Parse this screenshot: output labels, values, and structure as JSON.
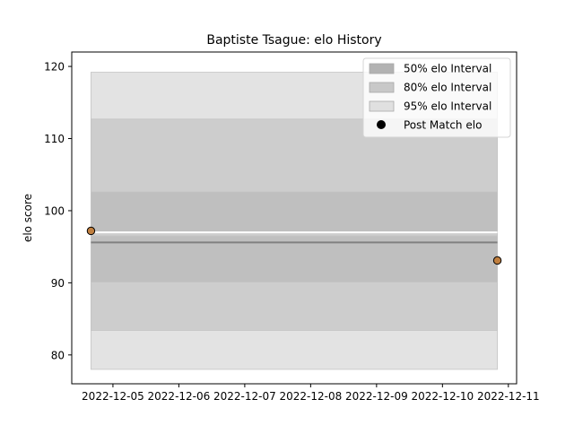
{
  "chart_data": {
    "type": "area",
    "title": "Baptiste Tsague: elo History",
    "xlabel": "",
    "ylabel": "elo score",
    "x_type": "date",
    "xlim": [
      "2022-12-04T09:00",
      "2022-12-11T03:00"
    ],
    "ylim": [
      76,
      122
    ],
    "xticks": [
      "2022-12-05",
      "2022-12-06",
      "2022-12-07",
      "2022-12-08",
      "2022-12-09",
      "2022-12-10",
      "2022-12-11"
    ],
    "yticks": [
      80,
      90,
      100,
      110,
      120
    ],
    "bands": [
      {
        "name": "95% elo Interval",
        "color": "#e3e3e3",
        "segments": [
          {
            "x": [
              "2022-12-04T16:00",
              "2022-12-10T20:00"
            ],
            "lower": 78.0,
            "upper": 119.2
          }
        ]
      },
      {
        "name": "80% elo Interval",
        "color": "#cdcdcd",
        "segments": [
          {
            "x": [
              "2022-12-04T16:00",
              "2022-12-10T20:00"
            ],
            "lower": 83.4,
            "upper": 112.7
          }
        ]
      },
      {
        "name": "50% elo Interval",
        "color": "#bfbfbf",
        "segments": [
          {
            "x": [
              "2022-12-04T16:00",
              "2022-12-10T20:00"
            ],
            "lower": 97.0,
            "upper": 102.6
          },
          {
            "x": [
              "2022-12-04T16:00",
              "2022-12-10T20:00"
            ],
            "lower": 90.1,
            "upper": 96.5
          }
        ]
      }
    ],
    "mean_lines": [
      {
        "x": [
          "2022-12-04T16:00",
          "2022-12-10T20:00"
        ],
        "y": 95.6,
        "color": "#808080"
      },
      {
        "x": [
          "2022-12-04T16:00",
          "2022-12-10T20:00"
        ],
        "y": 97.0,
        "color": "#ffffff"
      }
    ],
    "series": [
      {
        "name": "Post Match elo",
        "type": "scatter",
        "color": "#c07f3f",
        "points": [
          {
            "x": "2022-12-04T16:00",
            "y": 97.2
          },
          {
            "x": "2022-12-10T20:00",
            "y": 93.1
          }
        ]
      }
    ],
    "legend": {
      "position": "top-right",
      "entries": [
        {
          "label": "50% elo Interval",
          "kind": "patch",
          "color": "#b2b2b2"
        },
        {
          "label": "80% elo Interval",
          "kind": "patch",
          "color": "#c8c8c8"
        },
        {
          "label": "95% elo Interval",
          "kind": "patch",
          "color": "#e0e0e0"
        },
        {
          "label": "Post Match elo",
          "kind": "marker",
          "color": "#000000"
        }
      ]
    },
    "grid": false
  }
}
